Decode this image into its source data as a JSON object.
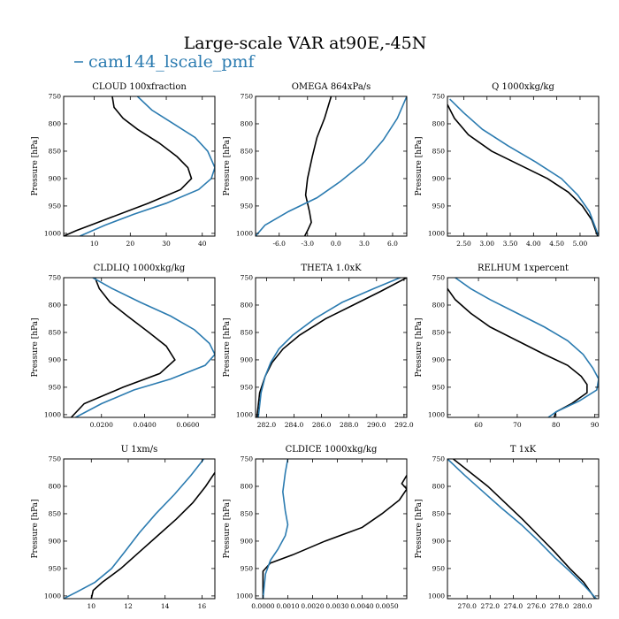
{
  "figure": {
    "title": "Large-scale VAR at90E,-45N",
    "legend": [
      {
        "label": "cam144_lscale_pmf",
        "color": "#2b7bb0"
      }
    ]
  },
  "chart_data": [
    {
      "type": "line",
      "title": "CLOUD  100xfraction",
      "ylabel": "Pressure [hPa]",
      "xlim": [
        1.5,
        43.5
      ],
      "ylim": [
        1005,
        750
      ],
      "yticks": [
        750,
        800,
        850,
        900,
        950,
        1000
      ],
      "xticks": [
        10,
        20,
        30,
        40
      ],
      "xticklabels": [
        "10",
        "20",
        "30",
        "40"
      ],
      "series": [
        {
          "color": "#000000",
          "x": [
            15,
            15.5,
            18,
            22,
            28,
            33,
            36,
            37,
            34,
            25,
            13,
            5,
            1.5
          ],
          "y": [
            750,
            770,
            790,
            810,
            835,
            860,
            880,
            900,
            920,
            945,
            975,
            995,
            1005
          ]
        },
        {
          "color": "#2b7bb0",
          "x": [
            22,
            26,
            32,
            38,
            41.5,
            43.5,
            42.5,
            39,
            30,
            21,
            13,
            6
          ],
          "y": [
            750,
            775,
            800,
            825,
            850,
            880,
            900,
            920,
            945,
            965,
            985,
            1005
          ]
        }
      ]
    },
    {
      "type": "line",
      "title": "OMEGA  864xPa/s",
      "ylabel": "Pressure [hPa]",
      "xlim": [
        -8.5,
        7.5
      ],
      "ylim": [
        1005,
        750
      ],
      "yticks": [
        750,
        800,
        850,
        900,
        950,
        1000
      ],
      "xticks": [
        -6,
        -3,
        0,
        3,
        6
      ],
      "xticklabels": [
        "-6.0",
        "-3.0",
        "0.0",
        "3.0",
        "6.0"
      ],
      "series": [
        {
          "color": "#000000",
          "x": [
            -0.5,
            -1.2,
            -2.0,
            -2.5,
            -3.0,
            -3.2,
            -2.8,
            -2.6,
            -3.0,
            -3.3
          ],
          "y": [
            750,
            790,
            825,
            860,
            900,
            930,
            960,
            980,
            995,
            1005
          ]
        },
        {
          "color": "#2b7bb0",
          "x": [
            7.5,
            6.5,
            5.0,
            3.0,
            0.5,
            -2.0,
            -5.0,
            -7.5,
            -8.5
          ],
          "y": [
            750,
            790,
            830,
            870,
            905,
            935,
            960,
            985,
            1005
          ]
        }
      ]
    },
    {
      "type": "line",
      "title": "Q  1000xkg/kg",
      "ylabel": "Pressure [hPa]",
      "xlim": [
        2.15,
        5.4
      ],
      "ylim": [
        1005,
        750
      ],
      "yticks": [
        750,
        800,
        850,
        900,
        950,
        1000
      ],
      "xticks": [
        2.5,
        3.0,
        3.5,
        4.0,
        4.5,
        5.0
      ],
      "xticklabels": [
        "2.50",
        "3.00",
        "3.50",
        "4.00",
        "4.50",
        "5.00"
      ],
      "series": [
        {
          "color": "#000000",
          "x": [
            2.15,
            2.3,
            2.6,
            3.1,
            3.7,
            4.3,
            4.75,
            5.05,
            5.25,
            5.38
          ],
          "y": [
            765,
            790,
            820,
            850,
            875,
            900,
            925,
            950,
            975,
            1005
          ]
        },
        {
          "color": "#2b7bb0",
          "x": [
            2.2,
            2.5,
            2.9,
            3.45,
            4.05,
            4.6,
            4.95,
            5.2,
            5.4
          ],
          "y": [
            755,
            780,
            810,
            840,
            870,
            900,
            930,
            960,
            1005
          ]
        }
      ]
    },
    {
      "type": "line",
      "title": "CLDLIQ  1000xkg/kg",
      "ylabel": "Pressure [hPa]",
      "xlim": [
        0.0025,
        0.0725
      ],
      "ylim": [
        1005,
        750
      ],
      "yticks": [
        750,
        800,
        850,
        900,
        950,
        1000
      ],
      "xticks": [
        0.02,
        0.04,
        0.06
      ],
      "xticklabels": [
        "0.0200",
        "0.0400",
        "0.0600"
      ],
      "series": [
        {
          "color": "#000000",
          "x": [
            0.017,
            0.019,
            0.024,
            0.032,
            0.042,
            0.05,
            0.054,
            0.047,
            0.03,
            0.012,
            0.006
          ],
          "y": [
            750,
            770,
            795,
            820,
            850,
            875,
            900,
            925,
            950,
            980,
            1005
          ]
        },
        {
          "color": "#2b7bb0",
          "x": [
            0.016,
            0.025,
            0.038,
            0.052,
            0.063,
            0.07,
            0.0725,
            0.068,
            0.052,
            0.035,
            0.02,
            0.008
          ],
          "y": [
            750,
            770,
            795,
            820,
            845,
            870,
            890,
            910,
            935,
            955,
            980,
            1005
          ]
        }
      ]
    },
    {
      "type": "line",
      "title": "THETA  1.0xK",
      "ylabel": "Pressure [hPa]",
      "xlim": [
        281.2,
        292.2
      ],
      "ylim": [
        1005,
        750
      ],
      "yticks": [
        750,
        800,
        850,
        900,
        950,
        1000
      ],
      "xticks": [
        282,
        284,
        286,
        288,
        290,
        292
      ],
      "xticklabels": [
        "282.0",
        "284.0",
        "286.0",
        "288.0",
        "290.0",
        "292.0"
      ],
      "series": [
        {
          "color": "#000000",
          "x": [
            292.2,
            290.3,
            288.3,
            286.3,
            284.4,
            283.2,
            282.4,
            281.9,
            281.5,
            281.3
          ],
          "y": [
            750,
            775,
            800,
            825,
            855,
            880,
            905,
            930,
            960,
            1005
          ]
        },
        {
          "color": "#2b7bb0",
          "x": [
            292.2,
            289.8,
            287.5,
            285.5,
            283.9,
            282.9,
            282.3,
            281.9,
            281.6,
            281.4
          ],
          "y": [
            745,
            770,
            795,
            825,
            855,
            880,
            905,
            930,
            960,
            1005
          ]
        }
      ]
    },
    {
      "type": "line",
      "title": "RELHUM  1xpercent",
      "ylabel": "Pressure [hPa]",
      "xlim": [
        52,
        91
      ],
      "ylim": [
        1005,
        750
      ],
      "yticks": [
        750,
        800,
        850,
        900,
        950,
        1000
      ],
      "xticks": [
        60,
        70,
        80,
        90
      ],
      "xticklabels": [
        "60",
        "70",
        "80",
        "90"
      ],
      "series": [
        {
          "color": "#000000",
          "x": [
            52,
            54,
            58,
            63,
            70,
            77,
            83,
            86.5,
            88,
            88,
            84,
            80,
            79.5
          ],
          "y": [
            770,
            790,
            815,
            840,
            865,
            890,
            910,
            930,
            945,
            960,
            980,
            995,
            1005
          ]
        },
        {
          "color": "#2b7bb0",
          "x": [
            54,
            58,
            63,
            70,
            77,
            83,
            87,
            89.5,
            91,
            90.5,
            86,
            80,
            78
          ],
          "y": [
            750,
            770,
            790,
            815,
            840,
            865,
            890,
            915,
            935,
            955,
            975,
            995,
            1005
          ]
        }
      ]
    },
    {
      "type": "line",
      "title": "U  1xm/s",
      "ylabel": "Pressure [hPa]",
      "xlim": [
        8.5,
        16.7
      ],
      "ylim": [
        1005,
        750
      ],
      "yticks": [
        750,
        800,
        850,
        900,
        950,
        1000
      ],
      "xticks": [
        10,
        12,
        14,
        16
      ],
      "xticklabels": [
        "10",
        "12",
        "14",
        "16"
      ],
      "series": [
        {
          "color": "#000000",
          "x": [
            16.7,
            16.2,
            15.5,
            14.6,
            13.6,
            12.6,
            11.6,
            10.6,
            10.1,
            10.0
          ],
          "y": [
            775,
            800,
            830,
            860,
            890,
            920,
            950,
            975,
            990,
            1005
          ]
        },
        {
          "color": "#2b7bb0",
          "x": [
            16.1,
            15.4,
            14.5,
            13.5,
            12.6,
            11.8,
            11.1,
            10.2,
            9.2,
            8.5
          ],
          "y": [
            750,
            780,
            815,
            850,
            885,
            920,
            950,
            975,
            993,
            1005
          ]
        }
      ]
    },
    {
      "type": "line",
      "title": "CLDICE  1000xkg/kg",
      "ylabel": "Pressure [hPa]",
      "xlim": [
        -0.0003,
        0.0058
      ],
      "ylim": [
        1005,
        750
      ],
      "yticks": [
        750,
        800,
        850,
        900,
        950,
        1000
      ],
      "xticks": [
        0,
        0.001,
        0.002,
        0.003,
        0.004,
        0.005
      ],
      "xticklabels": [
        "0.0000",
        "0.0010",
        "0.0020",
        "0.0030",
        "0.0040",
        "0.0050"
      ],
      "series": [
        {
          "color": "#000000",
          "x": [
            0.0058,
            0.0056,
            0.0058,
            0.0055,
            0.0048,
            0.004,
            0.0025,
            0.0012,
            0.0003,
            0.0,
            0.0
          ],
          "y": [
            780,
            795,
            805,
            825,
            850,
            875,
            900,
            925,
            940,
            955,
            1005
          ]
        },
        {
          "color": "#2b7bb0",
          "x": [
            0.001,
            0.0009,
            0.0008,
            0.0009,
            0.001,
            0.0009,
            0.0006,
            0.0003,
            0.0001,
            0.0
          ],
          "y": [
            750,
            775,
            810,
            845,
            870,
            890,
            915,
            935,
            960,
            1005
          ]
        }
      ]
    },
    {
      "type": "line",
      "title": "T  1xK",
      "ylabel": "Pressure [hPa]",
      "xlim": [
        268.3,
        281.4
      ],
      "ylim": [
        1005,
        750
      ],
      "yticks": [
        750,
        800,
        850,
        900,
        950,
        1000
      ],
      "xticks": [
        270,
        272,
        274,
        276,
        278,
        280
      ],
      "xticklabels": [
        "270.0",
        "272.0",
        "274.0",
        "276.0",
        "278.0",
        "280.0"
      ],
      "series": [
        {
          "color": "#000000",
          "x": [
            268.8,
            270.3,
            271.8,
            273.3,
            274.8,
            276.2,
            277.6,
            278.9,
            280.1,
            281.1
          ],
          "y": [
            750,
            775,
            800,
            830,
            860,
            890,
            920,
            950,
            975,
            1005
          ]
        },
        {
          "color": "#2b7bb0",
          "x": [
            268.3,
            269.8,
            271.4,
            273.0,
            274.7,
            276.2,
            277.6,
            278.9,
            280.1,
            281.2
          ],
          "y": [
            750,
            780,
            810,
            840,
            870,
            900,
            930,
            955,
            980,
            1005
          ]
        }
      ]
    }
  ]
}
